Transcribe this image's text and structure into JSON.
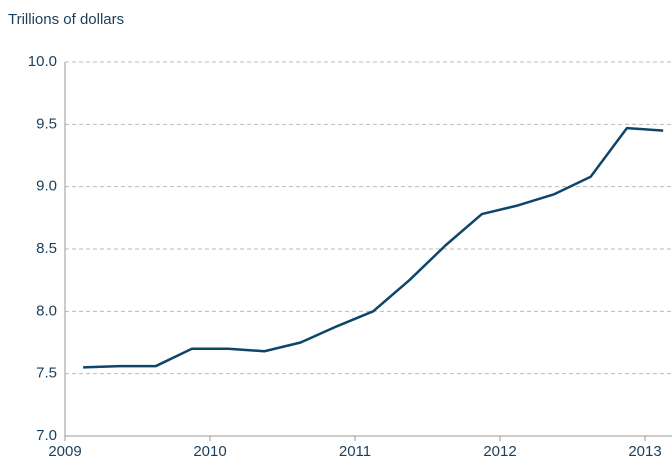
{
  "chart_data": {
    "type": "line",
    "title": "Trillions of dollars",
    "x": [
      2009.125,
      2009.375,
      2009.625,
      2009.875,
      2010.125,
      2010.375,
      2010.625,
      2010.875,
      2011.125,
      2011.375,
      2011.625,
      2011.875,
      2012.125,
      2012.375,
      2012.625,
      2012.875,
      2013.125
    ],
    "series": [
      {
        "color": "#0e4669",
        "values": [
          7.55,
          7.56,
          7.56,
          7.7,
          7.7,
          7.68,
          7.75,
          7.88,
          8.0,
          8.25,
          8.53,
          8.78,
          8.85,
          8.94,
          9.08,
          9.47,
          9.45
        ]
      }
    ],
    "xlim": [
      2009,
      2013.186
    ],
    "xticks": [
      2009,
      2010,
      2011,
      2012,
      2013
    ],
    "ylim": [
      7,
      10
    ],
    "yticks": [
      {
        "value": 7,
        "label": "7.0"
      },
      7.5,
      {
        "value": 8,
        "label": "8.0"
      },
      8.5,
      {
        "value": 9,
        "label": "9.0"
      },
      9.5,
      {
        "value": 10,
        "label": "10.0"
      }
    ],
    "grid": true
  }
}
